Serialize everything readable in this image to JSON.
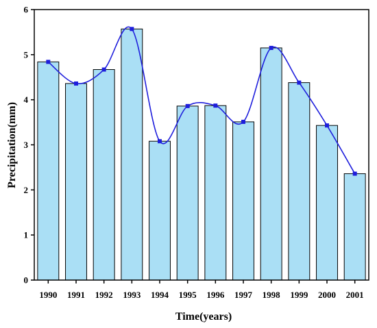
{
  "chart_data": {
    "type": "bar",
    "title": "",
    "xlabel": "Time(years)",
    "ylabel": "Precipitation(mm)",
    "categories": [
      "1990",
      "1991",
      "1992",
      "1993",
      "1994",
      "1995",
      "1996",
      "1997",
      "1998",
      "1999",
      "2000",
      "2001"
    ],
    "series": [
      {
        "type": "bar",
        "values": [
          4.84,
          4.36,
          4.67,
          5.57,
          3.08,
          3.86,
          3.87,
          3.51,
          5.15,
          4.38,
          3.43,
          2.36
        ],
        "color": "#aadff5",
        "edge_color": "#000000"
      },
      {
        "type": "line",
        "smooth": true,
        "values": [
          4.84,
          4.36,
          4.67,
          5.57,
          3.08,
          3.86,
          3.87,
          3.51,
          5.15,
          4.38,
          3.43,
          2.36
        ],
        "color": "#1e1edc",
        "marker": "square"
      }
    ],
    "yticks": [
      "0",
      "1",
      "2",
      "3",
      "4",
      "5",
      "6"
    ],
    "ylim": [
      0,
      6
    ],
    "grid": false,
    "legend": "none"
  }
}
